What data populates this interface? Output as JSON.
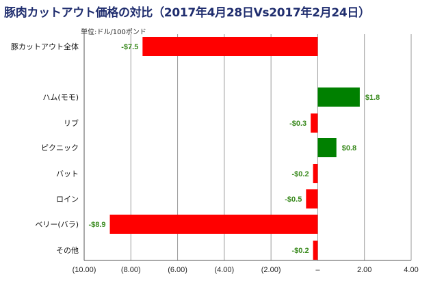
{
  "chart_data": {
    "type": "bar",
    "orientation": "horizontal",
    "title": "豚肉カットアウト価格の対比（2017年4月28日Vs2017年2月24日）",
    "unit_label": "単位:ドル/100ポンド",
    "xlim": [
      -10,
      4
    ],
    "x_ticks": [
      -10,
      -8,
      -6,
      -4,
      -2,
      0,
      2,
      4
    ],
    "x_tick_labels": [
      "(10.00)",
      "(8.00)",
      "(6.00)",
      "(4.00)",
      "(2.00)",
      "–",
      "2.00",
      "4.00"
    ],
    "grid": true,
    "categories": [
      {
        "label": "豚カットアウト全体",
        "value": -7.5,
        "value_label": "-$7.5",
        "color": "#ff0000"
      },
      {
        "label": "ハム(モモ)",
        "value": 1.8,
        "value_label": "$1.8",
        "color": "#008000"
      },
      {
        "label": "リブ",
        "value": -0.3,
        "value_label": "-$0.3",
        "color": "#ff0000"
      },
      {
        "label": "ピクニック",
        "value": 0.8,
        "value_label": "$0.8",
        "color": "#008000"
      },
      {
        "label": "バット",
        "value": -0.2,
        "value_label": "-$0.2",
        "color": "#ff0000"
      },
      {
        "label": "ロイン",
        "value": -0.5,
        "value_label": "-$0.5",
        "color": "#ff0000"
      },
      {
        "label": "ベリー(バラ)",
        "value": -8.9,
        "value_label": "-$8.9",
        "color": "#ff0000"
      },
      {
        "label": "その他",
        "value": -0.2,
        "value_label": "-$0.2",
        "color": "#ff0000"
      }
    ],
    "label_color": "#3a8a1e"
  }
}
